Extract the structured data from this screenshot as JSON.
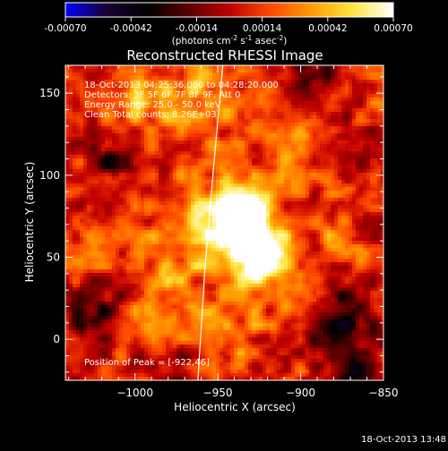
{
  "colorbar": {
    "ticks": [
      "-0.00070",
      "-0.00042",
      "-0.00014",
      "0.00014",
      "0.00042",
      "0.00070"
    ],
    "tick_values": [
      -0.0007,
      -0.00042,
      -0.00014,
      0.00014,
      0.00042,
      0.0007
    ],
    "range": [
      -0.0007,
      0.0007
    ],
    "unit_open": "(photons cm",
    "unit_sup1": "-2",
    "unit_mid": " s",
    "unit_sup2": "-1",
    "unit_mid2": " asec",
    "unit_sup3": "-2",
    "unit_close": ")",
    "colors": [
      "#0000ff",
      "#1a0033",
      "#000000",
      "#5a0000",
      "#c00000",
      "#ff4a00",
      "#ff9a00",
      "#ffe640",
      "#ffffff"
    ]
  },
  "chart_data": {
    "type": "heatmap",
    "title": "Reconstructed RHESSI Image",
    "xlabel": "Heliocentric X (arcsec)",
    "ylabel": "Heliocentric Y (arcsec)",
    "xlim": [
      -1042,
      -850
    ],
    "ylim": [
      -25,
      167
    ],
    "xticks": [
      -1000,
      -950,
      -900,
      -850
    ],
    "xtick_labels": [
      "−1000",
      "−950",
      "−900",
      "−850"
    ],
    "yticks": [
      0,
      50,
      100,
      150
    ],
    "ytick_labels": [
      "0",
      "50",
      "100",
      "150"
    ],
    "annotations": [
      "18-Oct-2013 04:25:36.000 to 04:28:20.000",
      "Detectors: 3F 5F 6F 7F 8F 9F, Att 0",
      "Energy Range: 25.0 - 50.0 keV",
      "Clean     Total counts: 8.26E+03"
    ],
    "peak_label": "Position of Peak = [-922,46]",
    "peak": [
      -922,
      46
    ],
    "limb_curve": [
      [
        -962,
        -25
      ],
      [
        -958,
        40
      ],
      [
        -953,
        100
      ],
      [
        -947,
        167
      ]
    ],
    "hotspots": [
      {
        "x": -924,
        "y": 48,
        "sigma": 14,
        "amp": 0.00075
      },
      {
        "x": -940,
        "y": 80,
        "sigma": 13,
        "amp": 0.00055
      },
      {
        "x": -934,
        "y": 75,
        "sigma": 12,
        "amp": 0.00052
      },
      {
        "x": -962,
        "y": 62,
        "sigma": 16,
        "amp": 0.00032
      },
      {
        "x": -1000,
        "y": 150,
        "sigma": 16,
        "amp": 0.00028
      },
      {
        "x": -960,
        "y": 145,
        "sigma": 18,
        "amp": 0.00028
      },
      {
        "x": -905,
        "y": 120,
        "sigma": 14,
        "amp": 0.00018
      },
      {
        "x": -985,
        "y": 20,
        "sigma": 18,
        "amp": 0.0002
      },
      {
        "x": -1020,
        "y": 60,
        "sigma": 14,
        "amp": 0.00016
      },
      {
        "x": -880,
        "y": 60,
        "sigma": 14,
        "amp": 0.00016
      },
      {
        "x": -945,
        "y": 5,
        "sigma": 14,
        "amp": 0.0002
      }
    ],
    "coldspots": [
      {
        "x": -1010,
        "y": 110,
        "sigma": 10,
        "amp": -0.00036
      },
      {
        "x": -1022,
        "y": 15,
        "sigma": 10,
        "amp": -0.0004
      },
      {
        "x": -875,
        "y": 10,
        "sigma": 13,
        "amp": -0.00045
      },
      {
        "x": -895,
        "y": 160,
        "sigma": 11,
        "amp": -0.00025
      },
      {
        "x": -865,
        "y": -20,
        "sigma": 8,
        "amp": -0.0006
      },
      {
        "x": -980,
        "y": -15,
        "sigma": 10,
        "amp": -0.0002
      }
    ]
  },
  "footer": {
    "timestamp": "18-Oct-2013 13:48"
  }
}
